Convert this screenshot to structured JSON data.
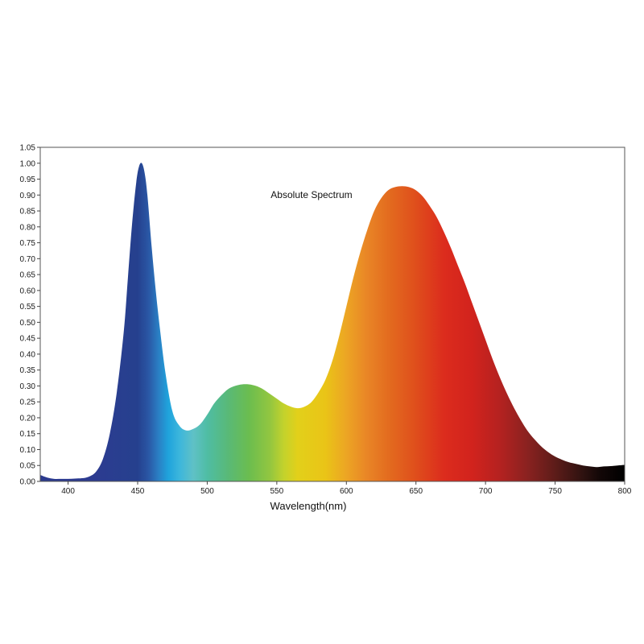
{
  "chart_data": {
    "type": "area",
    "title": "Absolute Spectrum",
    "xlabel": "Wavelength(nm)",
    "ylabel": "",
    "xlim": [
      380,
      800
    ],
    "ylim": [
      0,
      1.05
    ],
    "x_ticks": [
      400,
      450,
      500,
      550,
      600,
      650,
      700,
      750,
      800
    ],
    "y_ticks": [
      0.0,
      0.05,
      0.1,
      0.15,
      0.2,
      0.25,
      0.3,
      0.35,
      0.4,
      0.45,
      0.5,
      0.55,
      0.6,
      0.65,
      0.7,
      0.75,
      0.8,
      0.85,
      0.9,
      0.95,
      1.0,
      1.05
    ],
    "grid": false,
    "series": [
      {
        "x": [
          380,
          385,
          390,
          395,
          400,
          405,
          410,
          415,
          420,
          425,
          430,
          435,
          440,
          443,
          446,
          449,
          451,
          453,
          455,
          457,
          460,
          463,
          466,
          470,
          475,
          480,
          485,
          490,
          495,
          500,
          505,
          510,
          515,
          520,
          525,
          530,
          535,
          540,
          545,
          550,
          555,
          560,
          565,
          570,
          575,
          580,
          585,
          590,
          595,
          600,
          605,
          610,
          615,
          620,
          625,
          630,
          635,
          640,
          645,
          650,
          655,
          660,
          665,
          670,
          675,
          680,
          685,
          690,
          695,
          700,
          705,
          710,
          715,
          720,
          725,
          730,
          735,
          740,
          745,
          750,
          755,
          760,
          765,
          770,
          775,
          780,
          785,
          790,
          795,
          800
        ],
        "y": [
          0.02,
          0.012,
          0.008,
          0.008,
          0.008,
          0.009,
          0.01,
          0.015,
          0.03,
          0.07,
          0.15,
          0.28,
          0.47,
          0.64,
          0.81,
          0.94,
          0.99,
          1.0,
          0.97,
          0.9,
          0.74,
          0.6,
          0.48,
          0.34,
          0.22,
          0.175,
          0.16,
          0.165,
          0.18,
          0.21,
          0.245,
          0.27,
          0.29,
          0.3,
          0.305,
          0.305,
          0.3,
          0.29,
          0.275,
          0.26,
          0.245,
          0.235,
          0.23,
          0.235,
          0.25,
          0.28,
          0.32,
          0.38,
          0.46,
          0.55,
          0.64,
          0.72,
          0.79,
          0.85,
          0.89,
          0.915,
          0.925,
          0.928,
          0.925,
          0.915,
          0.895,
          0.865,
          0.83,
          0.785,
          0.735,
          0.68,
          0.625,
          0.565,
          0.505,
          0.445,
          0.385,
          0.33,
          0.28,
          0.235,
          0.195,
          0.16,
          0.133,
          0.11,
          0.092,
          0.078,
          0.068,
          0.06,
          0.055,
          0.05,
          0.047,
          0.045,
          0.047,
          0.048,
          0.05,
          0.052
        ]
      }
    ],
    "spectrum_colors": [
      {
        "nm": 380,
        "color": "#2b3a8e"
      },
      {
        "nm": 420,
        "color": "#2c3b90"
      },
      {
        "nm": 440,
        "color": "#283f8f"
      },
      {
        "nm": 450,
        "color": "#25408e"
      },
      {
        "nm": 458,
        "color": "#2a58a6"
      },
      {
        "nm": 465,
        "color": "#2a7fc4"
      },
      {
        "nm": 472,
        "color": "#1fa3dc"
      },
      {
        "nm": 480,
        "color": "#3cb6dc"
      },
      {
        "nm": 490,
        "color": "#5fc1c6"
      },
      {
        "nm": 500,
        "color": "#4fbda4"
      },
      {
        "nm": 515,
        "color": "#59b977"
      },
      {
        "nm": 530,
        "color": "#6bbd4f"
      },
      {
        "nm": 545,
        "color": "#92c640"
      },
      {
        "nm": 555,
        "color": "#c3d22c"
      },
      {
        "nm": 565,
        "color": "#e2d01a"
      },
      {
        "nm": 585,
        "color": "#eac417"
      },
      {
        "nm": 600,
        "color": "#eca524"
      },
      {
        "nm": 615,
        "color": "#e98526"
      },
      {
        "nm": 630,
        "color": "#e36c1f"
      },
      {
        "nm": 650,
        "color": "#df4e1c"
      },
      {
        "nm": 670,
        "color": "#dc2c1d"
      },
      {
        "nm": 690,
        "color": "#d2231d"
      },
      {
        "nm": 710,
        "color": "#b52220"
      },
      {
        "nm": 730,
        "color": "#8a2220"
      },
      {
        "nm": 750,
        "color": "#5d1c19"
      },
      {
        "nm": 770,
        "color": "#2e1210"
      },
      {
        "nm": 782,
        "color": "#130707"
      },
      {
        "nm": 800,
        "color": "#000000"
      }
    ]
  }
}
